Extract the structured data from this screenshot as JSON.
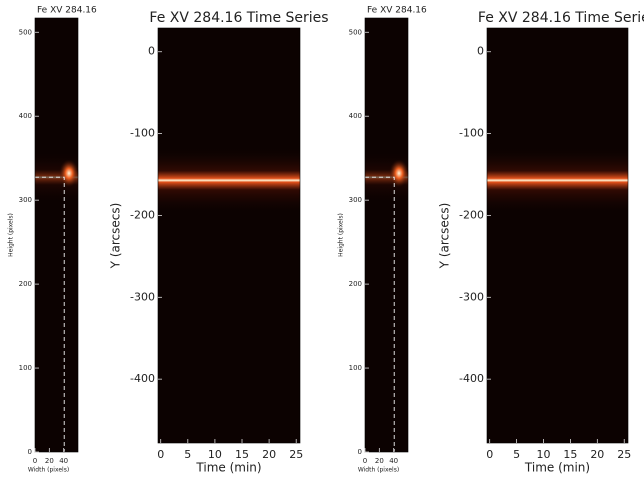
{
  "chart_data": [
    {
      "type": "image",
      "title": "Fe XV 284.16",
      "xlabel": "Width (pixels)",
      "ylabel": "Height (pixels)",
      "xlim": [
        0,
        60
      ],
      "ylim": [
        0,
        517
      ],
      "xticks": [
        0,
        20,
        40
      ],
      "yticks": [
        0,
        100,
        200,
        300,
        400,
        500
      ]
    },
    {
      "type": "image",
      "title": "Fe XV 284.16 Time Series",
      "xlabel": "Time (min)",
      "ylabel": "Y (arcsecs)",
      "xlim": [
        -0.5,
        25.7
      ],
      "ylim": [
        -478,
        29
      ],
      "xticks": [
        0,
        5,
        10,
        15,
        20,
        25
      ],
      "yticks": [
        -400,
        -300,
        -200,
        -100,
        0
      ]
    },
    {
      "type": "image",
      "title": "Fe XV 284.16",
      "xlabel": "Width (pixels)",
      "ylabel": "Height (pixels)",
      "xlim": [
        0,
        60
      ],
      "ylim": [
        0,
        517
      ],
      "xticks": [
        0,
        20,
        40
      ],
      "yticks": [
        0,
        100,
        200,
        300,
        400,
        500
      ]
    },
    {
      "type": "image",
      "title": "Fe XV 284.16 Time Series",
      "xlabel": "Time (min)",
      "ylabel": "Y (arcsecs)",
      "xlim": [
        -0.5,
        25.7
      ],
      "ylim": [
        -478,
        29
      ],
      "xticks": [
        0,
        5,
        10,
        15,
        20,
        25
      ],
      "yticks": [
        -400,
        -300,
        -200,
        -100,
        0
      ]
    }
  ]
}
